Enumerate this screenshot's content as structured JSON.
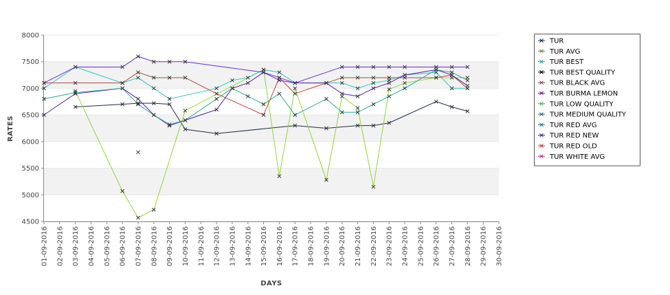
{
  "chart_data": {
    "type": "line",
    "xlabel": "DAYS",
    "ylabel": "RATES",
    "ylim": [
      4500,
      8000
    ],
    "yticks": [
      4500,
      5000,
      5500,
      6000,
      6500,
      7000,
      7500,
      8000
    ],
    "grid": "alternating horizontal bands",
    "legend_position": "right",
    "categories": [
      "01-09-2016",
      "02-09-2016",
      "03-09-2016",
      "04-09-2016",
      "05-09-2016",
      "06-09-2016",
      "07-09-2016",
      "08-09-2016",
      "09-09-2016",
      "10-09-2016",
      "11-09-2016",
      "12-09-2016",
      "13-09-2016",
      "14-09-2016",
      "15-09-2016",
      "16-09-2016",
      "17-09-2016",
      "18-09-2016",
      "19-09-2016",
      "20-09-2016",
      "21-09-2016",
      "22-09-2016",
      "23-09-2016",
      "24-09-2016",
      "25-09-2016",
      "26-09-2016",
      "27-09-2016",
      "28-09-2016",
      "29-09-2016",
      "30-09-2016"
    ],
    "series": [
      {
        "name": "TUR",
        "color": "#1f2a4a",
        "points": [
          [
            3,
            6650
          ],
          [
            6,
            6700
          ],
          [
            7,
            6720
          ],
          [
            8,
            6720
          ],
          [
            9,
            6700
          ],
          [
            10,
            6230
          ],
          [
            12,
            6150
          ],
          [
            17,
            6300
          ],
          [
            19,
            6250
          ],
          [
            21,
            6300
          ],
          [
            22,
            6300
          ],
          [
            23,
            6350
          ],
          [
            26,
            6750
          ],
          [
            27,
            6650
          ],
          [
            28,
            6570
          ]
        ]
      },
      {
        "name": "TUR AVG",
        "color": "#8fd63a",
        "points": [
          [
            3,
            6950
          ],
          [
            6,
            5070
          ],
          [
            7,
            4570
          ],
          [
            8,
            4720
          ],
          [
            10,
            6580
          ],
          [
            15,
            7350
          ],
          [
            16,
            5350
          ],
          [
            17,
            7000
          ],
          [
            19,
            5280
          ],
          [
            20,
            6850
          ],
          [
            21,
            6630
          ],
          [
            22,
            5150
          ],
          [
            23,
            6980
          ],
          [
            24,
            7100
          ],
          [
            26,
            7200
          ],
          [
            27,
            7200
          ],
          [
            28,
            7200
          ]
        ]
      },
      {
        "name": "TUR BEST",
        "color": "#2ec4c4",
        "points": [
          [
            1,
            7000
          ],
          [
            3,
            7400
          ],
          [
            6,
            7100
          ],
          [
            7,
            7200
          ],
          [
            8,
            7000
          ],
          [
            9,
            6800
          ],
          [
            12,
            7000
          ],
          [
            13,
            7150
          ],
          [
            14,
            7200
          ],
          [
            15,
            7350
          ],
          [
            16,
            7300
          ],
          [
            17,
            7100
          ],
          [
            19,
            7100
          ],
          [
            20,
            7100
          ],
          [
            21,
            7000
          ],
          [
            22,
            7100
          ],
          [
            23,
            7150
          ],
          [
            24,
            7250
          ],
          [
            26,
            7300
          ],
          [
            27,
            7000
          ],
          [
            28,
            7000
          ]
        ]
      },
      {
        "name": "TUR BLACK AVG",
        "color": "#b5473a",
        "points": [
          [
            1,
            7100
          ],
          [
            3,
            7100
          ],
          [
            6,
            7100
          ],
          [
            7,
            7300
          ],
          [
            8,
            7200
          ],
          [
            9,
            7200
          ],
          [
            10,
            7200
          ],
          [
            12,
            6900
          ],
          [
            15,
            6500
          ],
          [
            16,
            7200
          ],
          [
            17,
            6900
          ],
          [
            19,
            7100
          ],
          [
            20,
            7200
          ],
          [
            21,
            7200
          ],
          [
            22,
            7200
          ],
          [
            23,
            7200
          ],
          [
            24,
            7200
          ],
          [
            26,
            7200
          ],
          [
            27,
            7250
          ],
          [
            28,
            7000
          ]
        ]
      },
      {
        "name": "TUR BURMA LEMON",
        "color": "#6a2ec4",
        "points": [
          [
            1,
            7100
          ],
          [
            3,
            7400
          ],
          [
            6,
            7400
          ],
          [
            7,
            7600
          ],
          [
            8,
            7500
          ],
          [
            9,
            7500
          ],
          [
            10,
            7500
          ],
          [
            15,
            7300
          ],
          [
            16,
            7200
          ],
          [
            17,
            7100
          ],
          [
            20,
            7400
          ],
          [
            21,
            7400
          ],
          [
            22,
            7400
          ],
          [
            23,
            7400
          ],
          [
            24,
            7400
          ],
          [
            26,
            7400
          ],
          [
            27,
            7400
          ],
          [
            28,
            7400
          ]
        ]
      },
      {
        "name": "TUR RED NEW",
        "color": "#5a1fb0",
        "points": [
          [
            1,
            6500
          ],
          [
            3,
            6900
          ],
          [
            6,
            7000
          ],
          [
            7,
            6800
          ],
          [
            8,
            6500
          ],
          [
            9,
            6300
          ],
          [
            10,
            6400
          ],
          [
            12,
            6600
          ],
          [
            13,
            7000
          ],
          [
            14,
            7100
          ],
          [
            15,
            7300
          ],
          [
            16,
            7150
          ],
          [
            17,
            7100
          ],
          [
            19,
            7100
          ],
          [
            20,
            6900
          ],
          [
            21,
            6850
          ],
          [
            22,
            7000
          ],
          [
            23,
            7100
          ],
          [
            24,
            7250
          ],
          [
            26,
            7350
          ],
          [
            27,
            7250
          ],
          [
            28,
            7050
          ]
        ]
      },
      {
        "name": "TUR RED AVG",
        "color": "#2aa69a",
        "points": [
          [
            1,
            6800
          ],
          [
            3,
            6920
          ],
          [
            6,
            7000
          ],
          [
            7,
            6700
          ],
          [
            8,
            6500
          ],
          [
            9,
            6320
          ],
          [
            10,
            6400
          ],
          [
            12,
            6800
          ],
          [
            13,
            7000
          ],
          [
            14,
            6850
          ],
          [
            15,
            6700
          ],
          [
            16,
            6900
          ],
          [
            17,
            6500
          ],
          [
            19,
            6800
          ],
          [
            20,
            6550
          ],
          [
            21,
            6550
          ],
          [
            22,
            6700
          ],
          [
            23,
            6850
          ],
          [
            24,
            7000
          ],
          [
            26,
            7350
          ],
          [
            27,
            7300
          ],
          [
            28,
            7150
          ]
        ]
      }
    ],
    "extra_markers": [
      {
        "x": 7,
        "y": 5800,
        "color": "#444444"
      }
    ]
  },
  "legend": {
    "entries": [
      {
        "label": "TUR",
        "color": "#1f2a4a"
      },
      {
        "label": "TUR AVG",
        "color": "#5a8a1a"
      },
      {
        "label": "TUR BEST",
        "color": "#1fa8b0"
      },
      {
        "label": "TUR BEST QUALITY",
        "color": "#000000"
      },
      {
        "label": "TUR BLACK AVG",
        "color": "#8a3a2a"
      },
      {
        "label": "TUR BURMA LEMON",
        "color": "#6a1fa0"
      },
      {
        "label": "TUR LOW QUALITY",
        "color": "#2eb83a"
      },
      {
        "label": "TUR MEDIUM QUALITY",
        "color": "#2a6a6a"
      },
      {
        "label": "TUR RED AVG",
        "color": "#1f7a7a"
      },
      {
        "label": "TUR RED NEW",
        "color": "#2a1f9a"
      },
      {
        "label": "TUR RED OLD",
        "color": "#c43a3a"
      },
      {
        "label": "TUR WHITE AVG",
        "color": "#b02a8a"
      }
    ]
  }
}
